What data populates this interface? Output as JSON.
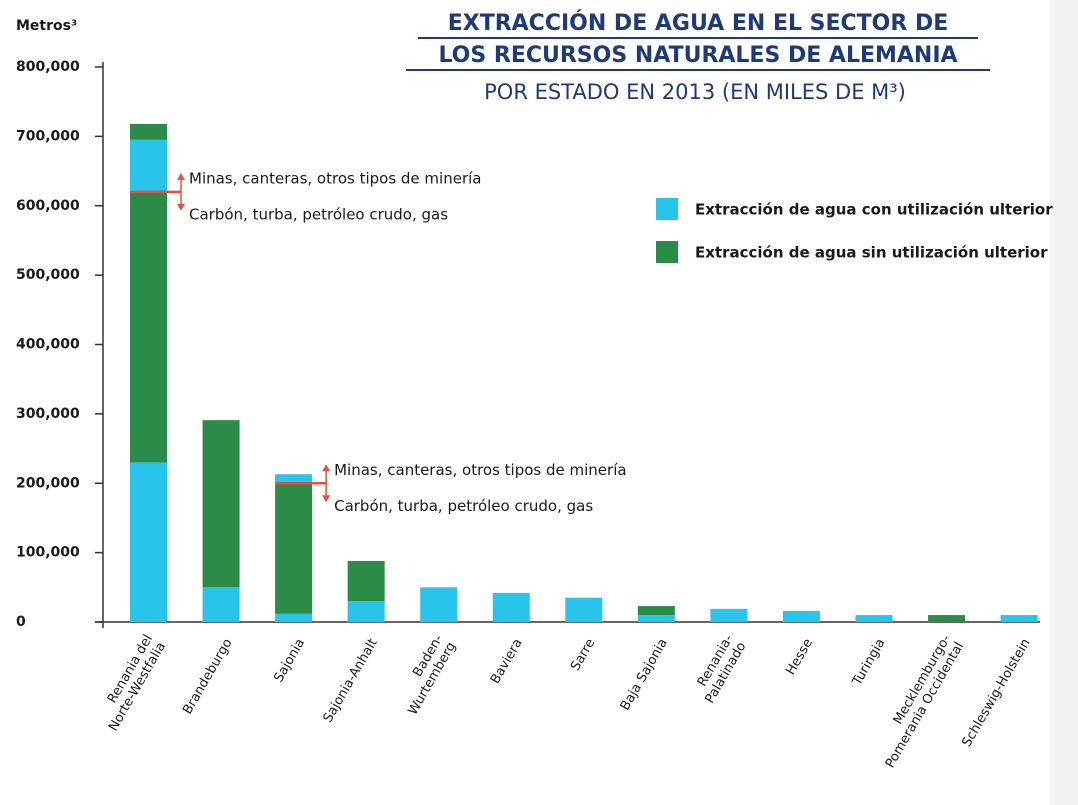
{
  "chart_data": {
    "type": "bar",
    "title": [
      "EXTRACCIÓN DE AGUA EN EL SECTOR DE",
      "LOS RECURSOS NATURALES DE ALEMANIA"
    ],
    "subtitle": "POR ESTADO EN 2013 (EN MILES DE M³)",
    "y_label": "Metros³",
    "categories": [
      [
        "Renania del",
        "Norte-Westfalia"
      ],
      [
        "Brandeburgo"
      ],
      [
        "Sajonia"
      ],
      [
        "Sajonia-Anhalt"
      ],
      [
        "Baden-",
        "Wurtemberg"
      ],
      [
        "Baviera"
      ],
      [
        "Sarre"
      ],
      [
        "Baja Sajonia"
      ],
      [
        "Renania-",
        "Palatinado"
      ],
      [
        "Hesse"
      ],
      [
        "Turingia"
      ],
      [
        "Mecklemburgo-",
        "Pomerania Occidental"
      ],
      [
        "Schleswig-Holstein"
      ]
    ],
    "series": [
      {
        "name": "Extracción de agua con utilización ulterior",
        "color": "#29c4ec",
        "values": [
          230000,
          50000,
          12000,
          30000,
          50000,
          42000,
          35000,
          10000,
          19000,
          16000,
          10000,
          0,
          10000
        ],
        "upper_values": [
          75000,
          null,
          13000,
          null,
          null,
          null,
          null,
          null,
          null,
          null,
          null,
          null,
          null
        ]
      },
      {
        "name": "Extracción de agua sin utilización ulterior",
        "color": "#2a8c46",
        "values": [
          390000,
          241000,
          188000,
          58000,
          0,
          0,
          0,
          13000,
          0,
          0,
          0,
          10000,
          0
        ],
        "upper_values": [
          23000,
          null,
          0,
          null,
          null,
          null,
          null,
          null,
          null,
          null,
          null,
          null,
          null
        ]
      }
    ],
    "annotations": [
      {
        "above": "Minas, canteras, otros tipos de minería",
        "below": "Carbón, turba, petróleo crudo, gas"
      },
      {
        "above": "Minas, canteras, otros tipos de minería",
        "below": "Carbón, turba, petróleo crudo, gas"
      }
    ],
    "ylim": [
      0,
      800000
    ],
    "yticks": [
      0,
      {
        "value": 100000,
        "label": "100,000"
      },
      {
        "value": 200000,
        "label": "200,000"
      },
      {
        "value": 300000,
        "label": "300,000"
      },
      {
        "value": 400000,
        "label": "400,000"
      },
      {
        "value": 500000,
        "label": "500,000"
      },
      {
        "value": 600000,
        "label": "600,000"
      },
      {
        "value": 700000,
        "label": "700,000"
      },
      {
        "value": 800000,
        "label": "800,000"
      }
    ],
    "annotation_color": "#e0533c"
  }
}
